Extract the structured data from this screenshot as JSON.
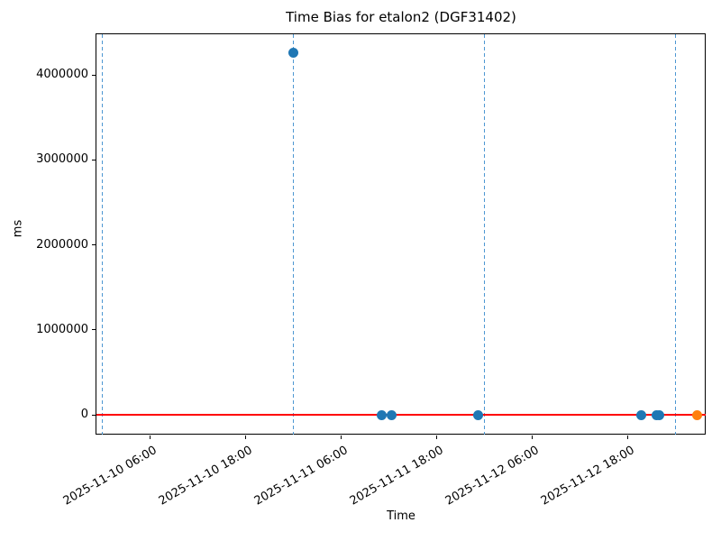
{
  "chart_data": {
    "type": "scatter",
    "title": "Time Bias for etalon2 (DGF31402)",
    "xlabel": "Time",
    "ylabel": "ms",
    "grid": false,
    "legend": "none",
    "x_base": "2025-11-10 00:00",
    "x_tick_labels": [
      "2025-11-10 06:00",
      "2025-11-10 18:00",
      "2025-11-11 06:00",
      "2025-11-11 18:00",
      "2025-11-12 06:00",
      "2025-11-12 18:00"
    ],
    "y_tick_labels": [
      "0",
      "1000000",
      "2000000",
      "3000000",
      "4000000"
    ],
    "y_tick_values": [
      0,
      1000000,
      2000000,
      3000000,
      4000000
    ],
    "xlim": [
      "2025-11-09 23:10",
      "2025-11-13 03:55"
    ],
    "ylim": [
      -230000,
      4490000
    ],
    "series": [
      {
        "name": "time-bias-points",
        "color": "#1f77b4",
        "marker": "circle",
        "points": [
          {
            "time": "2025-11-11 00:00",
            "ms": 4260000
          },
          {
            "time": "2025-11-11 11:05",
            "ms": 0
          },
          {
            "time": "2025-11-11 12:20",
            "ms": 0
          },
          {
            "time": "2025-11-11 23:10",
            "ms": 0
          },
          {
            "time": "2025-11-12 19:45",
            "ms": 0
          },
          {
            "time": "2025-11-12 21:35",
            "ms": 0
          },
          {
            "time": "2025-11-12 22:00",
            "ms": 0
          }
        ]
      },
      {
        "name": "latest-point",
        "color": "#ff7f0e",
        "marker": "circle",
        "points": [
          {
            "time": "2025-11-13 02:40",
            "ms": 0
          }
        ]
      }
    ],
    "reference_line": {
      "ms": 0,
      "color": "#ff0000"
    },
    "day_lines": {
      "style": "dashed",
      "color": "#4d97d2",
      "times": [
        "2025-11-10 00:00",
        "2025-11-11 00:00",
        "2025-11-12 00:00",
        "2025-11-13 00:00"
      ]
    }
  }
}
